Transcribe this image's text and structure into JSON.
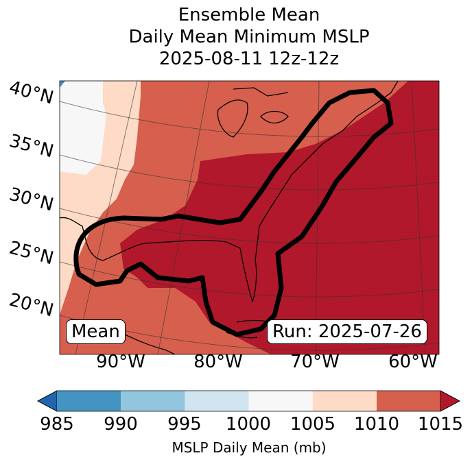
{
  "title": [
    "Ensemble Mean",
    "Daily Mean Minimum MSLP",
    "2025-08-11 12z-12z"
  ],
  "map": {
    "lat_labels": [
      "40°N",
      "35°N",
      "30°N",
      "25°N",
      "20°N"
    ],
    "lon_labels": [
      "90°W",
      "80°W",
      "70°W",
      "60°W"
    ],
    "left_box": "Mean",
    "right_box": "Run: 2025-07-26"
  },
  "colorbar": {
    "ticks": [
      "985",
      "990",
      "995",
      "1000",
      "1005",
      "1010",
      "1015"
    ],
    "label": "MSLP Daily Mean (mb)",
    "colors": {
      "under": "#2166ac",
      "985-990": "#4393c3",
      "990-995": "#92c5de",
      "995-1000": "#d1e5f0",
      "1000-1005": "#f7f7f7",
      "1005-1010": "#fddbc7",
      "1010-1015": "#d6604d",
      "over": "#b2182b"
    }
  }
}
